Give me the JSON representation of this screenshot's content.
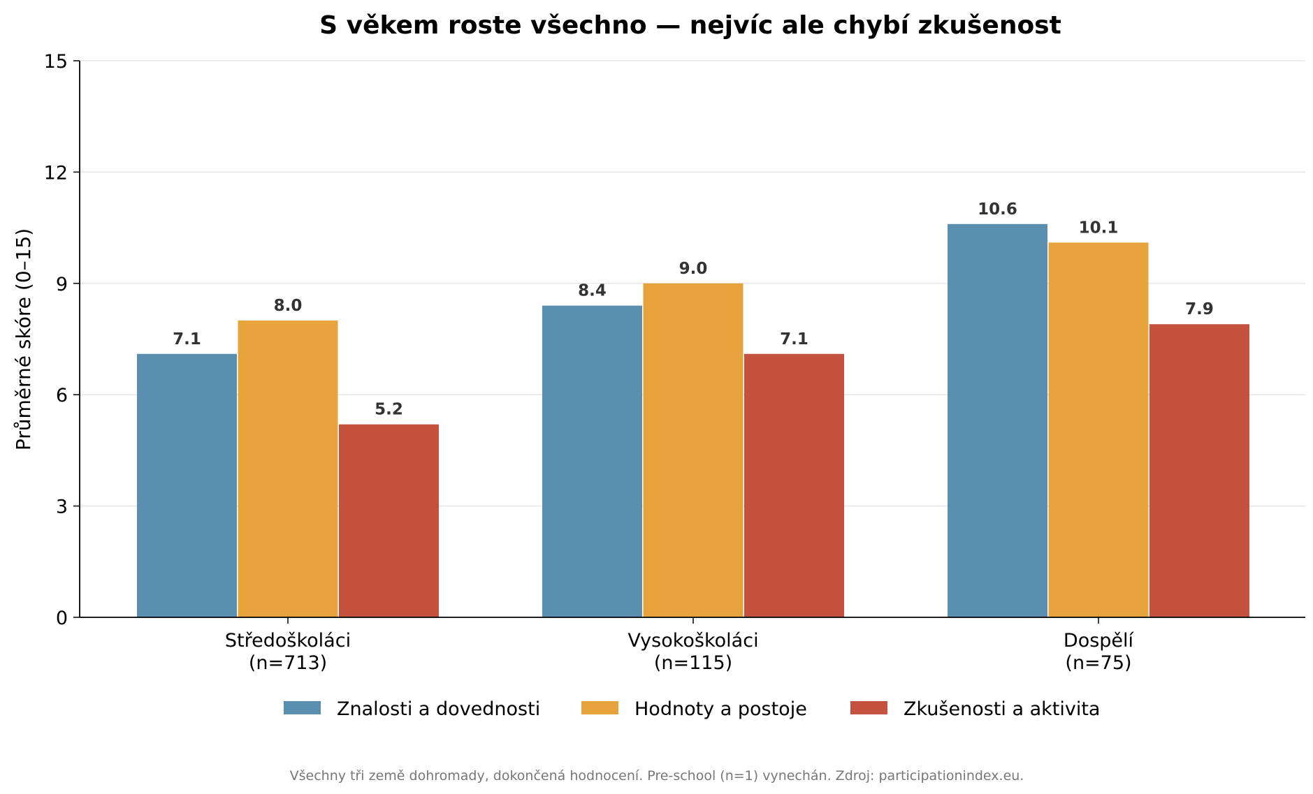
{
  "chart_data": {
    "type": "bar",
    "title": "S věkem roste všechno — nejvíc ale chybí zkušenost",
    "ylabel": "Průměrné skóre (0–15)",
    "xlabel": "",
    "ylim": [
      0,
      15
    ],
    "yticks": [
      "0",
      "3",
      "6",
      "9",
      "12",
      "15"
    ],
    "categories": [
      [
        "Středoškoláci",
        "(n=713)"
      ],
      [
        "Vysokoškoláci",
        "(n=115)"
      ],
      [
        "Dospělí",
        "(n=75)"
      ]
    ],
    "series": [
      {
        "name": "Znalosti a dovednosti",
        "color": "#5b8fb0",
        "values": [
          7.1,
          8.4,
          10.6
        ],
        "labels": [
          "7.1",
          "8.4",
          "10.6"
        ]
      },
      {
        "name": "Hodnoty a postoje",
        "color": "#e8a43c",
        "values": [
          8.0,
          9.0,
          10.1
        ],
        "labels": [
          "8.0",
          "9.0",
          "10.1"
        ]
      },
      {
        "name": "Zkušenosti a aktivita",
        "color": "#c4523f",
        "values": [
          5.2,
          7.1,
          7.9
        ],
        "labels": [
          "5.2",
          "7.1",
          "7.9"
        ]
      }
    ],
    "grid": "horizontal",
    "legend_position": "bottom-center",
    "footnote": "Všechny tři země dohromady, dokončená hodnocení. Pre-school (n=1) vynechán. Zdroj: participationindex.eu."
  }
}
